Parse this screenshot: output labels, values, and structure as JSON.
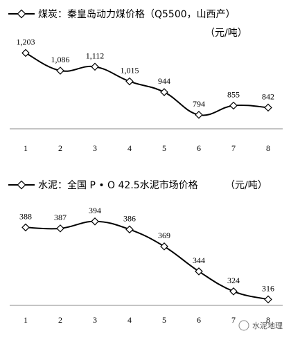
{
  "chart_data": [
    {
      "type": "line",
      "title": "煤炭：秦皇岛动力煤价格（Q5500，山西产）",
      "unit": "（元/吨）",
      "categories": [
        "1",
        "2",
        "3",
        "4",
        "5",
        "6",
        "7",
        "8"
      ],
      "values": [
        1203,
        1086,
        1112,
        1015,
        944,
        794,
        855,
        842
      ],
      "value_labels": [
        "1,203",
        "1,086",
        "1,112",
        "1,015",
        "944",
        "794",
        "855",
        "842"
      ],
      "ylim": [
        720,
        1260
      ],
      "grid": false,
      "legend": "top-left"
    },
    {
      "type": "line",
      "title": "水泥：全国 P • O 42.5水泥市场价格",
      "unit": "（元/吨）",
      "categories": [
        "1",
        "2",
        "3",
        "4",
        "5",
        "6",
        "7",
        "8"
      ],
      "values": [
        388,
        387,
        394,
        386,
        369,
        344,
        324,
        316
      ],
      "value_labels": [
        "388",
        "387",
        "394",
        "386",
        "369",
        "344",
        "324",
        "316"
      ],
      "ylim": [
        310,
        398
      ],
      "grid": false,
      "legend": "top-left"
    }
  ],
  "watermark": "水泥地理"
}
